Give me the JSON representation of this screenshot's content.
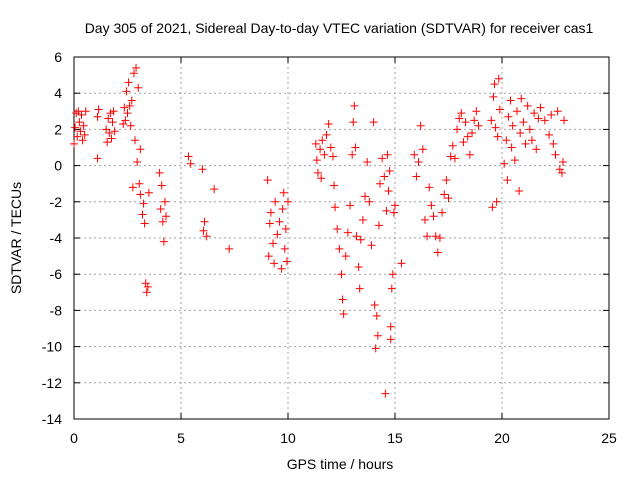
{
  "chart_data": {
    "type": "scatter",
    "title": "Day 305 of 2021, Sidereal Day-to-day VTEC variation (SDTVAR) for receiver cas1",
    "xlabel": "GPS time / hours",
    "ylabel": "SDTVAR / TECUs",
    "xlim": [
      0,
      25
    ],
    "ylim": [
      -14,
      6
    ],
    "xticks": [
      "0",
      "5",
      "10",
      "15",
      "20",
      "25"
    ],
    "yticks": [
      "-14",
      "-12",
      "-10",
      "-8",
      "-6",
      "-4",
      "-2",
      "0",
      "2",
      "4",
      "6"
    ],
    "grid": true,
    "marker": "+",
    "color": "#ff0000",
    "series": [
      {
        "name": "SDTVAR",
        "points": [
          [
            0.0,
            1.2
          ],
          [
            0.05,
            2.1
          ],
          [
            0.1,
            2.9
          ],
          [
            0.15,
            1.6
          ],
          [
            0.2,
            3.0
          ],
          [
            0.25,
            2.4
          ],
          [
            0.3,
            1.9
          ],
          [
            0.35,
            2.8
          ],
          [
            0.4,
            1.4
          ],
          [
            0.45,
            2.2
          ],
          [
            0.5,
            1.7
          ],
          [
            0.55,
            3.0
          ],
          [
            1.1,
            0.4
          ],
          [
            1.1,
            2.7
          ],
          [
            1.15,
            3.1
          ],
          [
            1.5,
            2.0
          ],
          [
            1.55,
            1.3
          ],
          [
            1.6,
            2.6
          ],
          [
            1.65,
            1.8
          ],
          [
            1.7,
            2.9
          ],
          [
            1.75,
            1.5
          ],
          [
            1.8,
            2.4
          ],
          [
            1.85,
            3.0
          ],
          [
            1.9,
            1.9
          ],
          [
            2.3,
            2.3
          ],
          [
            2.35,
            3.2
          ],
          [
            2.4,
            2.5
          ],
          [
            2.45,
            4.1
          ],
          [
            2.5,
            2.9
          ],
          [
            2.55,
            4.6
          ],
          [
            2.6,
            3.3
          ],
          [
            2.65,
            2.2
          ],
          [
            2.7,
            3.6
          ],
          [
            2.75,
            -1.2
          ],
          [
            2.8,
            5.1
          ],
          [
            2.85,
            1.4
          ],
          [
            2.9,
            5.4
          ],
          [
            2.95,
            0.2
          ],
          [
            3.0,
            4.3
          ],
          [
            3.05,
            -1.0
          ],
          [
            3.1,
            -1.6
          ],
          [
            3.1,
            0.9
          ],
          [
            3.2,
            -2.7
          ],
          [
            3.25,
            -2.1
          ],
          [
            3.3,
            -3.2
          ],
          [
            3.35,
            -6.5
          ],
          [
            3.4,
            -7.0
          ],
          [
            3.45,
            -6.7
          ],
          [
            3.5,
            -1.5
          ],
          [
            4.0,
            -0.4
          ],
          [
            4.05,
            -2.4
          ],
          [
            4.1,
            -1.1
          ],
          [
            4.15,
            -3.1
          ],
          [
            4.2,
            -4.2
          ],
          [
            4.25,
            -2.0
          ],
          [
            4.3,
            -2.8
          ],
          [
            5.35,
            0.5
          ],
          [
            5.45,
            0.1
          ],
          [
            6.0,
            -0.2
          ],
          [
            6.05,
            -3.6
          ],
          [
            6.1,
            -3.1
          ],
          [
            6.2,
            -3.9
          ],
          [
            6.55,
            -1.3
          ],
          [
            7.25,
            -4.6
          ],
          [
            9.05,
            -0.8
          ],
          [
            9.1,
            -5.0
          ],
          [
            9.15,
            -3.2
          ],
          [
            9.2,
            -2.6
          ],
          [
            9.3,
            -4.3
          ],
          [
            9.35,
            -5.4
          ],
          [
            9.4,
            -2.0
          ],
          [
            9.5,
            -3.8
          ],
          [
            9.6,
            -3.1
          ],
          [
            9.7,
            -5.7
          ],
          [
            9.75,
            -2.4
          ],
          [
            9.8,
            -1.5
          ],
          [
            9.85,
            -4.6
          ],
          [
            9.9,
            -3.5
          ],
          [
            9.95,
            -5.3
          ],
          [
            10.0,
            -2.0
          ],
          [
            11.3,
            1.2
          ],
          [
            11.35,
            0.3
          ],
          [
            11.4,
            -0.4
          ],
          [
            11.5,
            0.9
          ],
          [
            11.55,
            -0.7
          ],
          [
            11.6,
            1.4
          ],
          [
            11.7,
            0.6
          ],
          [
            11.8,
            1.7
          ],
          [
            11.9,
            2.3
          ],
          [
            12.0,
            1.0
          ],
          [
            12.1,
            0.5
          ],
          [
            12.15,
            -1.1
          ],
          [
            12.2,
            -2.3
          ],
          [
            12.3,
            -3.5
          ],
          [
            12.4,
            -4.6
          ],
          [
            12.5,
            -6.0
          ],
          [
            12.55,
            -7.4
          ],
          [
            12.6,
            -8.2
          ],
          [
            12.7,
            -5.0
          ],
          [
            12.8,
            -3.7
          ],
          [
            12.9,
            -2.2
          ],
          [
            13.0,
            0.6
          ],
          [
            13.05,
            2.4
          ],
          [
            13.1,
            3.3
          ],
          [
            13.15,
            1.0
          ],
          [
            13.2,
            -3.9
          ],
          [
            13.3,
            -5.6
          ],
          [
            13.35,
            -6.8
          ],
          [
            13.4,
            -4.1
          ],
          [
            13.5,
            -3.0
          ],
          [
            13.6,
            -1.7
          ],
          [
            13.7,
            0.2
          ],
          [
            13.8,
            -2.0
          ],
          [
            13.9,
            -4.4
          ],
          [
            14.0,
            2.4
          ],
          [
            14.05,
            -7.7
          ],
          [
            14.1,
            -10.1
          ],
          [
            14.15,
            -8.3
          ],
          [
            14.2,
            -9.4
          ],
          [
            14.25,
            -3.3
          ],
          [
            14.3,
            -1.0
          ],
          [
            14.4,
            0.4
          ],
          [
            14.5,
            -0.6
          ],
          [
            14.55,
            -12.6
          ],
          [
            14.6,
            -2.5
          ],
          [
            14.65,
            0.6
          ],
          [
            14.7,
            -1.4
          ],
          [
            14.75,
            -0.3
          ],
          [
            14.8,
            -8.9
          ],
          [
            14.8,
            -9.6
          ],
          [
            14.85,
            -6.8
          ],
          [
            14.9,
            -6.0
          ],
          [
            14.95,
            -2.6
          ],
          [
            15.0,
            -2.2
          ],
          [
            15.3,
            -5.4
          ],
          [
            15.9,
            0.6
          ],
          [
            16.0,
            -0.6
          ],
          [
            16.1,
            0.2
          ],
          [
            16.2,
            2.2
          ],
          [
            16.3,
            0.9
          ],
          [
            16.4,
            -3.0
          ],
          [
            16.5,
            -3.9
          ],
          [
            16.6,
            -1.2
          ],
          [
            16.7,
            -2.2
          ],
          [
            16.8,
            -2.8
          ],
          [
            16.9,
            -3.9
          ],
          [
            17.0,
            -4.8
          ],
          [
            17.1,
            -4.0
          ],
          [
            17.2,
            -2.6
          ],
          [
            17.3,
            -1.6
          ],
          [
            17.4,
            -0.8
          ],
          [
            17.5,
            -1.8
          ],
          [
            17.6,
            0.5
          ],
          [
            17.7,
            1.1
          ],
          [
            17.8,
            0.4
          ],
          [
            17.9,
            2.0
          ],
          [
            18.0,
            2.6
          ],
          [
            18.1,
            2.9
          ],
          [
            18.2,
            1.3
          ],
          [
            18.3,
            2.4
          ],
          [
            18.4,
            1.6
          ],
          [
            18.5,
            0.6
          ],
          [
            18.6,
            1.8
          ],
          [
            18.7,
            2.5
          ],
          [
            18.8,
            3.0
          ],
          [
            18.9,
            2.2
          ],
          [
            19.5,
            2.5
          ],
          [
            19.55,
            -2.3
          ],
          [
            19.6,
            3.8
          ],
          [
            19.65,
            4.5
          ],
          [
            19.7,
            2.1
          ],
          [
            19.75,
            -2.0
          ],
          [
            19.8,
            1.6
          ],
          [
            19.85,
            4.8
          ],
          [
            19.9,
            3.1
          ],
          [
            20.1,
            0.1
          ],
          [
            20.2,
            1.4
          ],
          [
            20.25,
            -0.8
          ],
          [
            20.3,
            2.7
          ],
          [
            20.4,
            3.6
          ],
          [
            20.45,
            1.0
          ],
          [
            20.5,
            2.2
          ],
          [
            20.6,
            0.3
          ],
          [
            20.7,
            3.0
          ],
          [
            20.8,
            -1.4
          ],
          [
            20.85,
            1.8
          ],
          [
            20.9,
            3.7
          ],
          [
            21.0,
            2.4
          ],
          [
            21.1,
            1.2
          ],
          [
            21.2,
            3.3
          ],
          [
            21.3,
            2.0
          ],
          [
            21.4,
            1.4
          ],
          [
            21.5,
            2.9
          ],
          [
            21.6,
            0.9
          ],
          [
            21.7,
            2.6
          ],
          [
            21.8,
            3.2
          ],
          [
            22.0,
            2.5
          ],
          [
            22.2,
            1.7
          ],
          [
            22.3,
            2.8
          ],
          [
            22.4,
            1.2
          ],
          [
            22.5,
            0.6
          ],
          [
            22.6,
            3.0
          ],
          [
            22.7,
            -0.2
          ],
          [
            22.8,
            -0.4
          ],
          [
            22.85,
            0.2
          ],
          [
            22.9,
            2.5
          ]
        ]
      }
    ]
  }
}
